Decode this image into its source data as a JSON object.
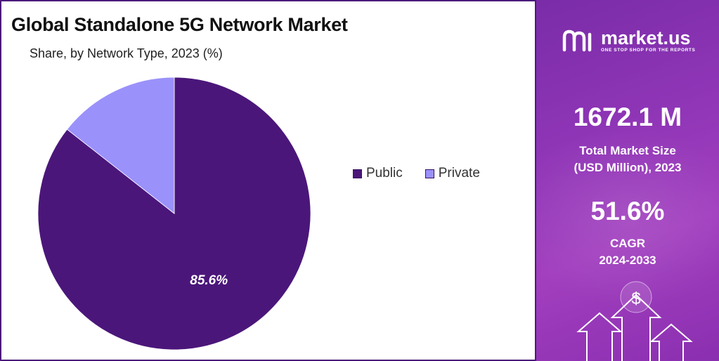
{
  "chart": {
    "title": "Global Standalone 5G Network Market",
    "subtitle": "Share, by Network Type, 2023 (%)"
  },
  "chart_data": {
    "type": "pie",
    "title": "Global Standalone 5G Network Market",
    "subtitle": "Share, by Network Type, 2023 (%)",
    "categories": [
      "Public",
      "Private"
    ],
    "values": [
      85.6,
      14.4
    ],
    "data_labels": [
      "85.6%",
      ""
    ],
    "colors": [
      "#4b167a",
      "#9b91fb"
    ],
    "legend_position": "right"
  },
  "legend": [
    {
      "label": "Public",
      "color": "#4b167a"
    },
    {
      "label": "Private",
      "color": "#9b91fb"
    }
  ],
  "brand": {
    "name": "market.us",
    "tagline": "ONE STOP SHOP FOR THE REPORTS"
  },
  "stats": {
    "market_size_value": "1672.1 M",
    "market_size_label_1": "Total Market Size",
    "market_size_label_2": "(USD Million), 2023",
    "cagr_value": "51.6%",
    "cagr_label_1": "CAGR",
    "cagr_label_2": "2024-2033"
  },
  "decoration": {
    "currency_symbol": "$"
  }
}
